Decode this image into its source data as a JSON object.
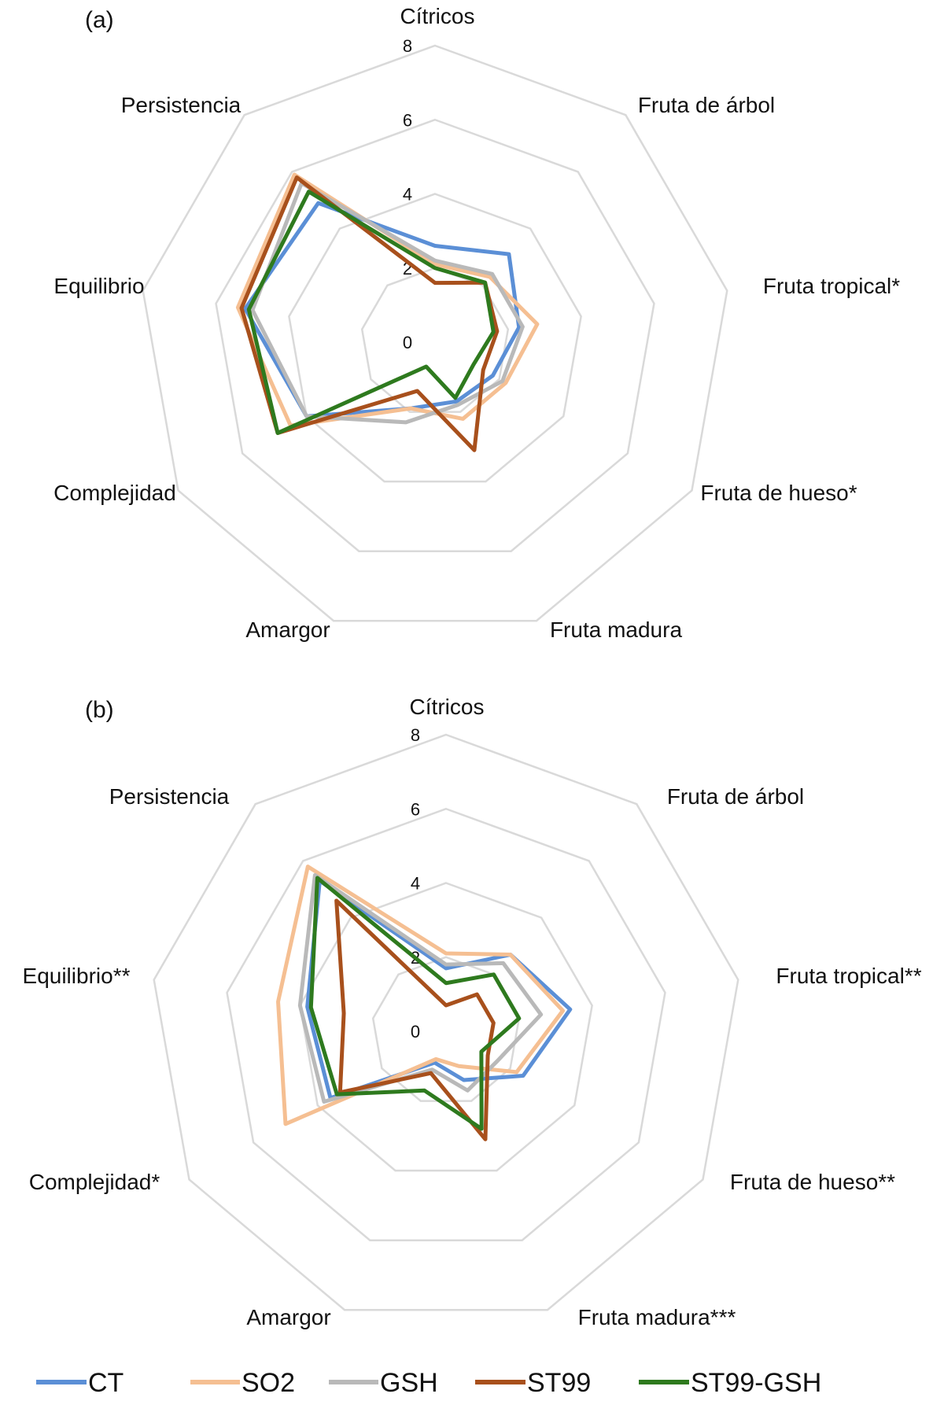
{
  "legend": [
    {
      "label": "CT",
      "color": "#5b8fd6"
    },
    {
      "label": "SO2",
      "color": "#f5bf92"
    },
    {
      "label": "GSH",
      "color": "#b9b9b9"
    },
    {
      "label": "ST99",
      "color": "#a8501c"
    },
    {
      "label": "ST99-GSH",
      "color": "#2e7a1e"
    }
  ],
  "chart_data": [
    {
      "type": "radar",
      "panel": "(a)",
      "axes": [
        "Cítricos",
        "Fruta de árbol",
        "Fruta tropical*",
        "Fruta de hueso*",
        "Fruta madura",
        "Amargor",
        "Complejidad",
        "Equilibrio",
        "Persistencia"
      ],
      "ticks": [
        "0",
        "2",
        "4",
        "6",
        "8"
      ],
      "range": [
        0,
        8
      ],
      "grid": true,
      "legend_position": "bottom",
      "series": [
        {
          "name": "CT",
          "color": "#5b8fd6",
          "values": [
            2.6,
            3.1,
            2.3,
            1.8,
            1.7,
            1.9,
            4.0,
            5.2,
            4.9
          ]
        },
        {
          "name": "SO2",
          "color": "#f5bf92",
          "values": [
            2.1,
            2.3,
            2.8,
            2.2,
            2.2,
            1.9,
            4.5,
            5.4,
            5.9
          ]
        },
        {
          "name": "GSH",
          "color": "#b9b9b9",
          "values": [
            2.2,
            2.4,
            2.4,
            2.1,
            1.8,
            2.3,
            4.0,
            5.0,
            5.6
          ]
        },
        {
          "name": "ST99",
          "color": "#a8501c",
          "values": [
            1.6,
            2.1,
            1.7,
            1.5,
            3.1,
            1.4,
            4.9,
            5.3,
            5.8
          ]
        },
        {
          "name": "ST99-GSH",
          "color": "#2e7a1e",
          "values": [
            2.0,
            2.1,
            1.6,
            1.2,
            1.6,
            0.7,
            4.9,
            5.1,
            5.3
          ]
        }
      ]
    },
    {
      "type": "radar",
      "panel": "(b)",
      "axes": [
        "Cítricos",
        "Fruta de árbol",
        "Fruta tropical**",
        "Fruta de hueso**",
        "Fruta madura***",
        "Amargor",
        "Complejidad*",
        "Equilibrio**",
        "Persistencia"
      ],
      "ticks": [
        "0",
        "2",
        "4",
        "6",
        "8"
      ],
      "range": [
        0,
        8
      ],
      "grid": true,
      "legend_position": "bottom",
      "series": [
        {
          "name": "CT",
          "color": "#5b8fd6",
          "values": [
            1.7,
            2.7,
            3.4,
            2.4,
            1.4,
            0.9,
            3.6,
            3.8,
            5.3
          ]
        },
        {
          "name": "SO2",
          "color": "#f5bf92",
          "values": [
            2.1,
            2.7,
            3.2,
            2.2,
            1.0,
            0.8,
            5.0,
            4.6,
            5.8
          ]
        },
        {
          "name": "GSH",
          "color": "#b9b9b9",
          "values": [
            1.8,
            2.4,
            2.6,
            1.6,
            1.7,
            1.1,
            3.8,
            4.0,
            5.5
          ]
        },
        {
          "name": "ST99",
          "color": "#a8501c",
          "values": [
            0.7,
            1.3,
            1.3,
            1.3,
            3.1,
            1.2,
            3.3,
            2.8,
            4.6
          ]
        },
        {
          "name": "ST99-GSH",
          "color": "#2e7a1e",
          "values": [
            1.3,
            2.0,
            2.0,
            1.1,
            2.8,
            1.7,
            3.4,
            3.7,
            5.4
          ]
        }
      ]
    }
  ]
}
